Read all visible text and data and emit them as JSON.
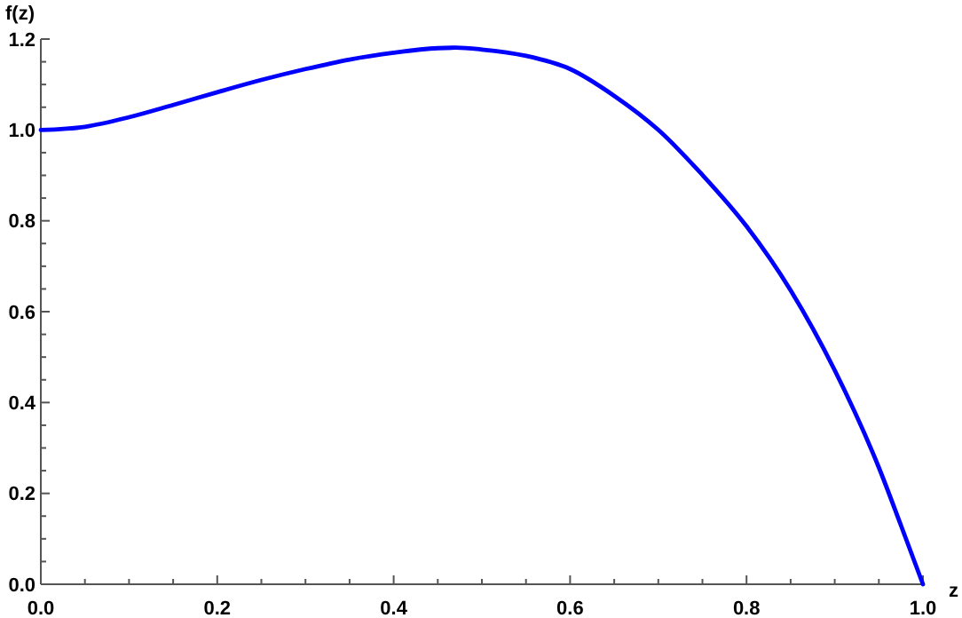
{
  "chart_data": {
    "type": "line",
    "xlabel": "z",
    "ylabel": "f(z)",
    "xlim": [
      0,
      1
    ],
    "ylim": [
      0,
      1.2
    ],
    "xticks": [
      {
        "value": 0,
        "label": "0.0"
      },
      {
        "value": 0.05,
        "label": null
      },
      {
        "value": 0.1,
        "label": null
      },
      {
        "value": 0.15,
        "label": null
      },
      {
        "value": 0.2,
        "label": "0.2"
      },
      {
        "value": 0.25,
        "label": null
      },
      {
        "value": 0.3,
        "label": null
      },
      {
        "value": 0.35,
        "label": null
      },
      {
        "value": 0.4,
        "label": "0.4"
      },
      {
        "value": 0.45,
        "label": null
      },
      {
        "value": 0.5,
        "label": null
      },
      {
        "value": 0.55,
        "label": null
      },
      {
        "value": 0.6,
        "label": "0.6"
      },
      {
        "value": 0.65,
        "label": null
      },
      {
        "value": 0.7,
        "label": null
      },
      {
        "value": 0.75,
        "label": null
      },
      {
        "value": 0.8,
        "label": "0.8"
      },
      {
        "value": 0.85,
        "label": null
      },
      {
        "value": 0.9,
        "label": null
      },
      {
        "value": 0.95,
        "label": null
      },
      {
        "value": 1,
        "label": "1.0"
      }
    ],
    "yticks": [
      {
        "value": 0,
        "label": "0.0"
      },
      {
        "value": 0.05,
        "label": null
      },
      {
        "value": 0.1,
        "label": null
      },
      {
        "value": 0.15,
        "label": null
      },
      {
        "value": 0.2,
        "label": "0.2"
      },
      {
        "value": 0.25,
        "label": null
      },
      {
        "value": 0.3,
        "label": null
      },
      {
        "value": 0.35,
        "label": null
      },
      {
        "value": 0.4,
        "label": "0.4"
      },
      {
        "value": 0.45,
        "label": null
      },
      {
        "value": 0.5,
        "label": null
      },
      {
        "value": 0.55,
        "label": null
      },
      {
        "value": 0.6,
        "label": "0.6"
      },
      {
        "value": 0.65,
        "label": null
      },
      {
        "value": 0.7,
        "label": null
      },
      {
        "value": 0.75,
        "label": null
      },
      {
        "value": 0.8,
        "label": "0.8"
      },
      {
        "value": 0.85,
        "label": null
      },
      {
        "value": 0.9,
        "label": null
      },
      {
        "value": 0.95,
        "label": null
      },
      {
        "value": 1,
        "label": "1.0"
      },
      {
        "value": 1.05,
        "label": null
      },
      {
        "value": 1.1,
        "label": null
      },
      {
        "value": 1.15,
        "label": null
      },
      {
        "value": 1.2,
        "label": "1.2"
      }
    ],
    "x": [
      0,
      0.05,
      0.1,
      0.15,
      0.2,
      0.25,
      0.3,
      0.35,
      0.4,
      0.45,
      0.47,
      0.5,
      0.55,
      0.6,
      0.65,
      0.7,
      0.75,
      0.8,
      0.85,
      0.9,
      0.95,
      0.975,
      1
    ],
    "series": [
      {
        "color": "#0000ff",
        "values": [
          1,
          1.007,
          1.028,
          1.055,
          1.083,
          1.11,
          1.134,
          1.155,
          1.17,
          1.18,
          1.181,
          1.177,
          1.163,
          1.134,
          1.075,
          1,
          0.901,
          0.788,
          0.647,
          0.471,
          0.257,
          0.13,
          0
        ]
      }
    ],
    "grid": false,
    "marker": "none",
    "line_style": "solid"
  }
}
